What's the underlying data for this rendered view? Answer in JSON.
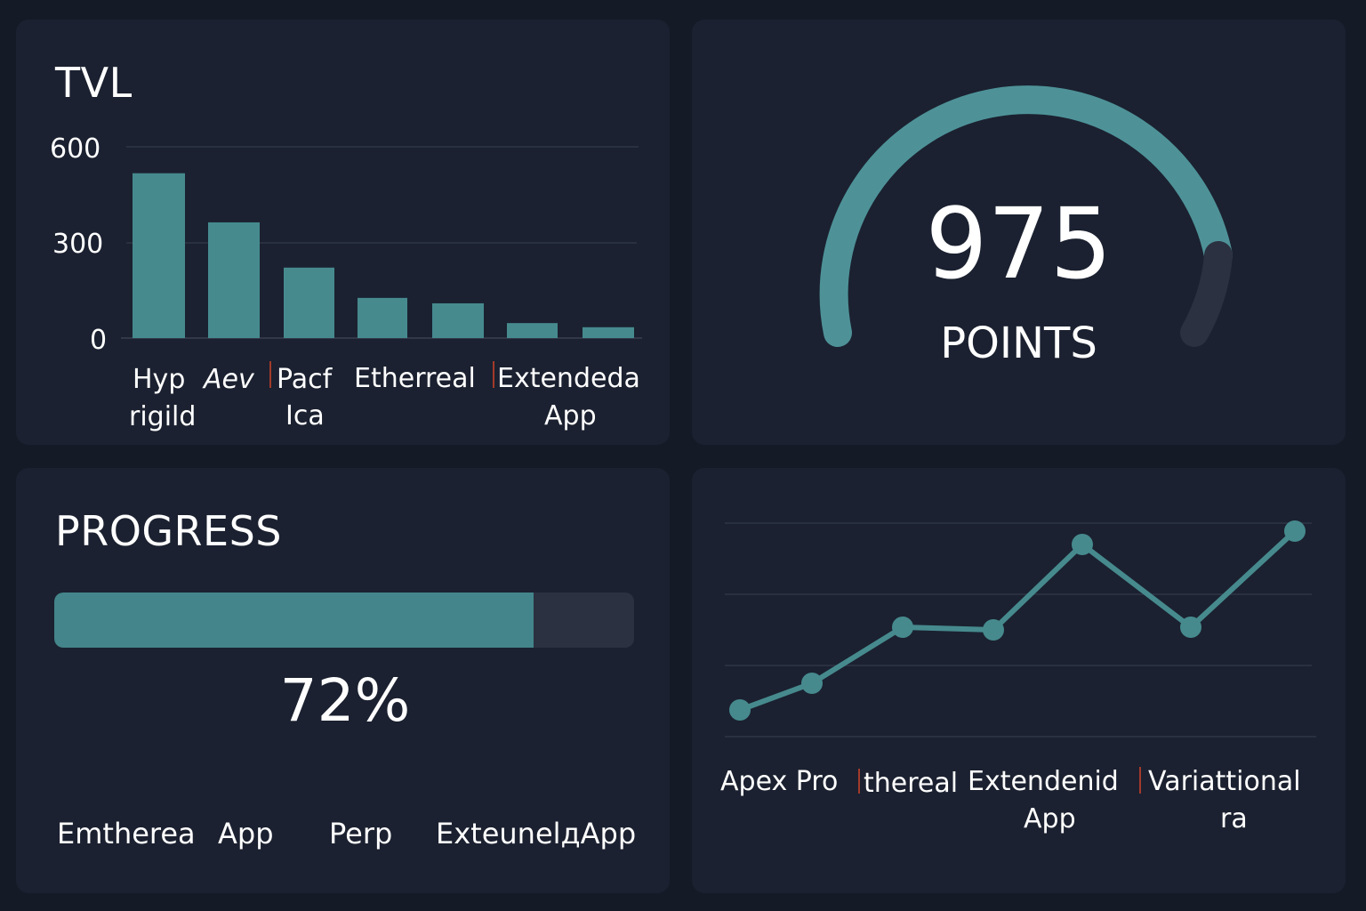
{
  "colors": {
    "page_bg": "#141a26",
    "panel_bg": "#1b2130",
    "accent": "#468a8e",
    "track": "#2b3140",
    "grid": "#2e3545",
    "text": "#ffffff"
  },
  "tvl_panel": {
    "title": "TVL"
  },
  "gauge_panel": {
    "value": "975",
    "unit": "POINTS"
  },
  "progress_panel": {
    "title": "PROGRESS",
    "percent_label": "72%",
    "labels": [
      "Emtherea",
      "App",
      "Perp",
      "ExteunelдApp"
    ]
  },
  "line_panel": {
    "labels": [
      "Apex Pro",
      "thereal",
      "Extendenid App",
      "Variattional ra"
    ]
  },
  "chart_data": [
    {
      "type": "bar",
      "title": "TVL",
      "categories": [
        "Hyp rigild",
        "Aev",
        "Pacf Ica",
        "Etherreal",
        "",
        "Extendeda App",
        ""
      ],
      "values": [
        517,
        363,
        221,
        126,
        109,
        47,
        34
      ],
      "yticks": [
        0,
        300,
        600
      ],
      "ylim": [
        0,
        600
      ],
      "grid": true
    },
    {
      "type": "gauge",
      "value": 975,
      "label": "POINTS",
      "fill_fraction": 0.82
    },
    {
      "type": "progress",
      "title": "PROGRESS",
      "value": 72,
      "labels": [
        "Emtherea",
        "App",
        "Perp",
        "ExteunelдApp"
      ]
    },
    {
      "type": "line",
      "categories": [
        "Apex Pro",
        "thereal",
        "Extendenid App",
        "Variattional ra"
      ],
      "values": [
        10,
        20,
        41,
        40,
        72,
        41,
        77
      ],
      "ylim": [
        0,
        80
      ],
      "grid": true
    }
  ]
}
